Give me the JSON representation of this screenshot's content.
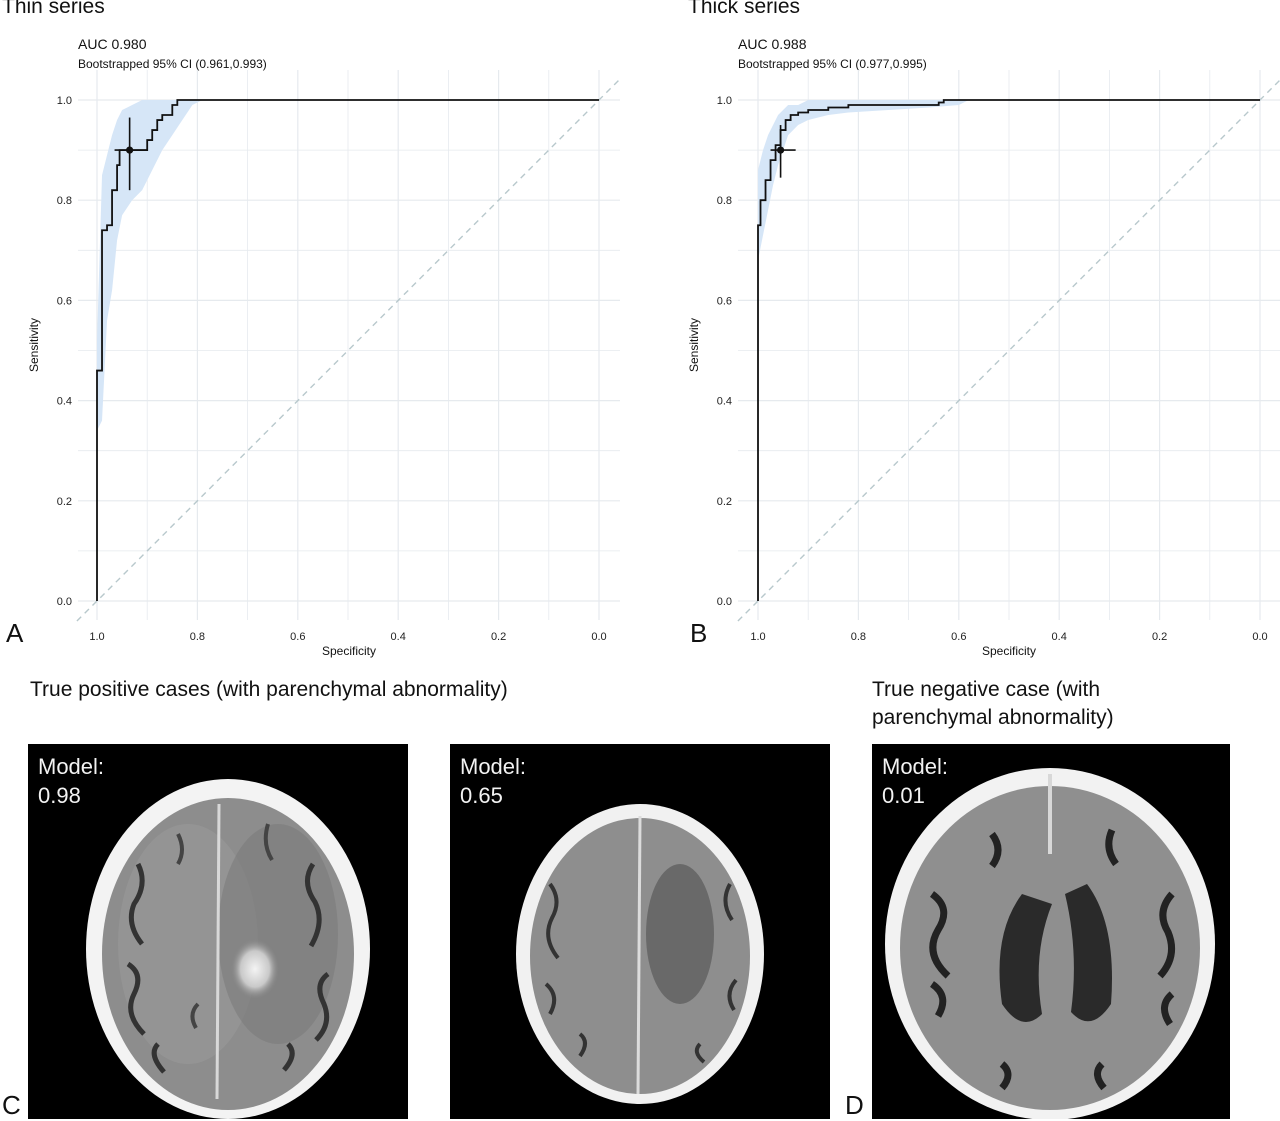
{
  "chart_data": [
    {
      "type": "line",
      "panel": "A",
      "title": "Thin series",
      "auc_text": "AUC 0.980",
      "ci_text": "Bootstrapped 95% CI (0.961,0.993)",
      "xlabel": "Specificity",
      "ylabel": "Sensitivity",
      "xlim": [
        1.0,
        0.0
      ],
      "ylim": [
        0.0,
        1.0
      ],
      "x_ticks": [
        "1.0",
        "0.8",
        "0.6",
        "0.4",
        "0.2",
        "0.0"
      ],
      "y_ticks": [
        "0.0",
        "0.2",
        "0.4",
        "0.6",
        "0.8",
        "1.0"
      ],
      "grid": true,
      "roc": [
        [
          1.0,
          0.0
        ],
        [
          1.0,
          0.46
        ],
        [
          0.99,
          0.46
        ],
        [
          0.99,
          0.74
        ],
        [
          0.98,
          0.74
        ],
        [
          0.98,
          0.75
        ],
        [
          0.97,
          0.75
        ],
        [
          0.97,
          0.82
        ],
        [
          0.96,
          0.82
        ],
        [
          0.96,
          0.87
        ],
        [
          0.955,
          0.87
        ],
        [
          0.955,
          0.9
        ],
        [
          0.93,
          0.9
        ],
        [
          0.9,
          0.9
        ],
        [
          0.9,
          0.92
        ],
        [
          0.89,
          0.92
        ],
        [
          0.89,
          0.94
        ],
        [
          0.88,
          0.94
        ],
        [
          0.88,
          0.96
        ],
        [
          0.87,
          0.96
        ],
        [
          0.87,
          0.97
        ],
        [
          0.85,
          0.97
        ],
        [
          0.85,
          0.99
        ],
        [
          0.84,
          0.99
        ],
        [
          0.84,
          1.0
        ],
        [
          0.0,
          1.0
        ]
      ],
      "ci_band": [
        [
          1.0,
          0.34,
          0.52
        ],
        [
          0.99,
          0.36,
          0.85
        ],
        [
          0.98,
          0.56,
          0.89
        ],
        [
          0.97,
          0.62,
          0.93
        ],
        [
          0.96,
          0.72,
          0.96
        ],
        [
          0.95,
          0.77,
          0.98
        ],
        [
          0.93,
          0.8,
          0.99
        ],
        [
          0.91,
          0.82,
          1.0
        ],
        [
          0.89,
          0.86,
          1.0
        ],
        [
          0.87,
          0.9,
          1.0
        ],
        [
          0.85,
          0.93,
          1.0
        ],
        [
          0.83,
          0.96,
          1.0
        ],
        [
          0.81,
          0.99,
          1.0
        ],
        [
          0.79,
          1.0,
          1.0
        ]
      ],
      "operating_point": {
        "spec": 0.935,
        "sens": 0.9,
        "spec_range": [
          0.965,
          0.9
        ],
        "sens_range": [
          0.82,
          0.965
        ]
      },
      "diagonal": true
    },
    {
      "type": "line",
      "panel": "B",
      "title": "Thick series",
      "auc_text": "AUC 0.988",
      "ci_text": "Bootstrapped 95% CI (0.977,0.995)",
      "xlabel": "Specificity",
      "ylabel": "Sensitivity",
      "xlim": [
        1.0,
        0.0
      ],
      "ylim": [
        0.0,
        1.0
      ],
      "x_ticks": [
        "1.0",
        "0.8",
        "0.6",
        "0.4",
        "0.2",
        "0.0"
      ],
      "y_ticks": [
        "0.0",
        "0.2",
        "0.4",
        "0.6",
        "0.8",
        "1.0"
      ],
      "grid": true,
      "roc": [
        [
          1.0,
          0.0
        ],
        [
          1.0,
          0.75
        ],
        [
          0.995,
          0.75
        ],
        [
          0.995,
          0.8
        ],
        [
          0.985,
          0.8
        ],
        [
          0.985,
          0.84
        ],
        [
          0.975,
          0.84
        ],
        [
          0.975,
          0.88
        ],
        [
          0.965,
          0.88
        ],
        [
          0.965,
          0.91
        ],
        [
          0.955,
          0.91
        ],
        [
          0.955,
          0.94
        ],
        [
          0.945,
          0.94
        ],
        [
          0.945,
          0.96
        ],
        [
          0.935,
          0.96
        ],
        [
          0.935,
          0.97
        ],
        [
          0.92,
          0.97
        ],
        [
          0.92,
          0.975
        ],
        [
          0.9,
          0.975
        ],
        [
          0.9,
          0.98
        ],
        [
          0.86,
          0.98
        ],
        [
          0.86,
          0.985
        ],
        [
          0.82,
          0.985
        ],
        [
          0.82,
          0.99
        ],
        [
          0.64,
          0.99
        ],
        [
          0.64,
          0.995
        ],
        [
          0.63,
          0.995
        ],
        [
          0.63,
          1.0
        ],
        [
          0.0,
          1.0
        ]
      ],
      "ci_band": [
        [
          1.0,
          0.68,
          0.86
        ],
        [
          0.99,
          0.73,
          0.9
        ],
        [
          0.98,
          0.78,
          0.93
        ],
        [
          0.97,
          0.83,
          0.95
        ],
        [
          0.96,
          0.87,
          0.97
        ],
        [
          0.95,
          0.9,
          0.98
        ],
        [
          0.94,
          0.93,
          0.99
        ],
        [
          0.92,
          0.95,
          0.99
        ],
        [
          0.9,
          0.96,
          1.0
        ],
        [
          0.86,
          0.97,
          1.0
        ],
        [
          0.82,
          0.975,
          1.0
        ],
        [
          0.74,
          0.98,
          1.0
        ],
        [
          0.66,
          0.985,
          1.0
        ],
        [
          0.6,
          0.99,
          1.0
        ],
        [
          0.58,
          1.0,
          1.0
        ]
      ],
      "operating_point": {
        "spec": 0.955,
        "sens": 0.9,
        "spec_range": [
          0.975,
          0.925
        ],
        "sens_range": [
          0.845,
          0.95
        ]
      },
      "diagonal": true
    }
  ],
  "panel_letters": {
    "a": "A",
    "b": "B",
    "c": "C",
    "d": "D"
  },
  "section_titles": {
    "true_positive": "True positive cases (with parenchymal abnormality)",
    "true_negative_line1": "True negative case (with",
    "true_negative_line2": "parenchymal abnormality)"
  },
  "ct_images": [
    {
      "label_line1": "Model:",
      "label_line2": "0.98"
    },
    {
      "label_line1": "Model:",
      "label_line2": "0.65"
    },
    {
      "label_line1": "Model:",
      "label_line2": "0.01"
    }
  ],
  "colors": {
    "roc_line": "#111111",
    "ci_band": "#d6e6f7",
    "grid": "#e6eaee",
    "diagonal": "#b8c8cc"
  }
}
